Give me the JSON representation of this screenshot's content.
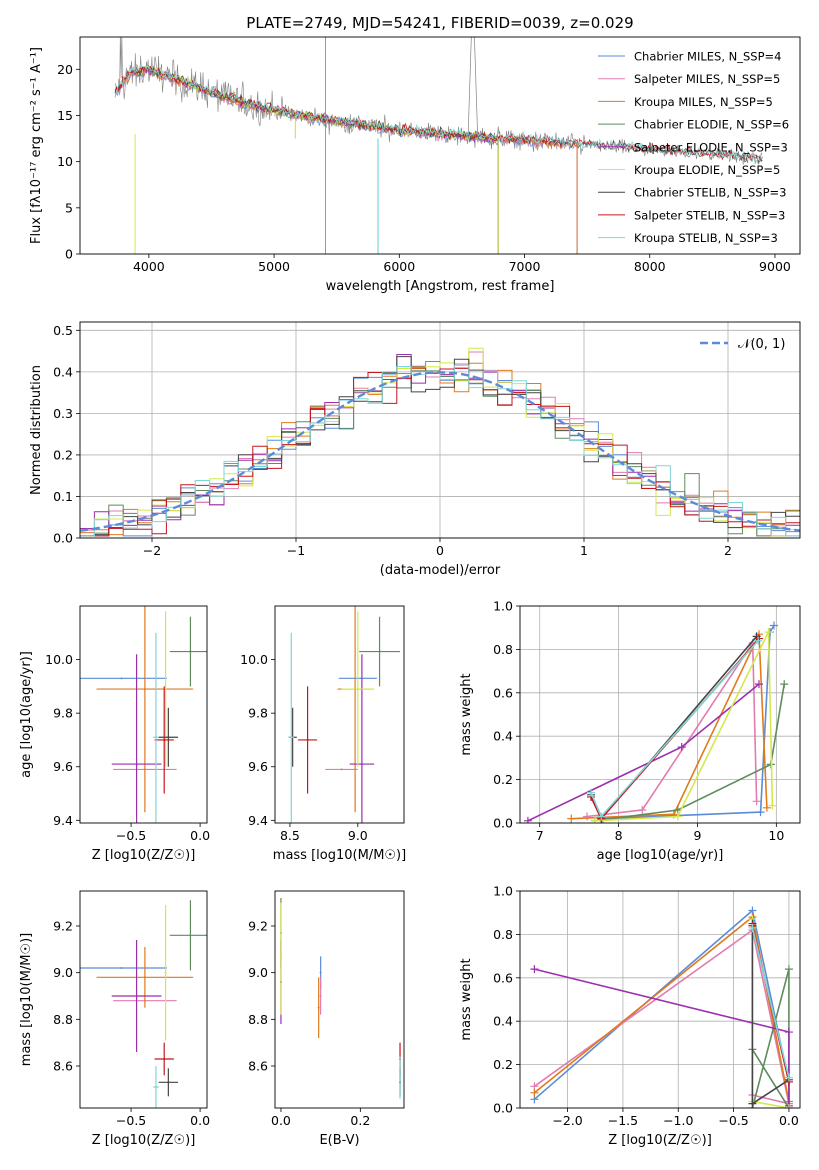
{
  "figure": {
    "title": "PLATE=2749, MJD=54241, FIBERID=0039, z=0.029"
  },
  "model_colors": {
    "Chabrier MILES": "#5b8bd9",
    "Salpeter MILES": "#e27bb0",
    "Kroupa MILES": "#e07a1f",
    "Chabrier ELODIE": "#5e8c5c",
    "Salpeter ELODIE": "#9b2fae",
    "Kroupa ELODIE": "#d4e84a",
    "Chabrier STELIB": "#444444",
    "Salpeter STELIB": "#c4161c",
    "Kroupa STELIB": "#7fd6d6",
    "data": "#808080"
  },
  "chart_data": [
    {
      "id": "spectrum",
      "type": "line",
      "title": "PLATE=2749, MJD=54241, FIBERID=0039, z=0.029",
      "xlabel": "wavelength [Angstrom, rest frame]",
      "ylabel": "Flux [fλ10⁻¹⁷ erg cm⁻² s⁻¹ A⁻¹]",
      "xlim": [
        3450,
        9200
      ],
      "ylim": [
        0,
        23.5
      ],
      "xticks": [
        4000,
        5000,
        6000,
        7000,
        8000,
        9000
      ],
      "yticks": [
        0,
        5,
        10,
        15,
        20
      ],
      "grid": false,
      "legend_position": "top-right",
      "legend": [
        "Chabrier MILES, N_SSP=4",
        "Salpeter MILES, N_SSP=5",
        "Kroupa MILES, N_SSP=5",
        "Chabrier ELODIE, N_SSP=6",
        "Salpeter ELODIE, N_SSP=3",
        "Kroupa ELODIE, N_SSP=5",
        "Chabrier STELIB, N_SSP=3",
        "Salpeter STELIB, N_SSP=3",
        "Kroupa STELIB, N_SSP=3"
      ],
      "continuum": {
        "x": [
          3730,
          3850,
          4000,
          4200,
          4500,
          4800,
          5000,
          5300,
          5600,
          6000,
          6500,
          7000,
          7500,
          8000,
          8500,
          8900
        ],
        "y": [
          17.5,
          19.5,
          20.0,
          19.0,
          17.5,
          16.2,
          15.6,
          14.8,
          14.2,
          13.4,
          12.8,
          12.3,
          11.8,
          11.3,
          10.8,
          10.2
        ]
      },
      "model_coverage": {
        "Chabrier MILES": [
          3730,
          7420
        ],
        "Salpeter MILES": [
          3730,
          7420
        ],
        "Kroupa MILES": [
          3730,
          7420
        ],
        "Chabrier ELODIE": [
          3900,
          6790
        ],
        "Salpeter ELODIE": [
          3900,
          6790
        ],
        "Kroupa ELODIE": [
          3900,
          6790
        ],
        "Chabrier STELIB": [
          3730,
          8900
        ],
        "Salpeter STELIB": [
          3730,
          8900
        ],
        "Kroupa STELIB": [
          3730,
          8900
        ]
      }
    },
    {
      "id": "residuals",
      "type": "line",
      "xlabel": "(data-model)/error",
      "ylabel": "Normed distribution",
      "xlim": [
        -2.5,
        2.5
      ],
      "ylim": [
        0,
        0.52
      ],
      "xticks": [
        -2,
        -1,
        0,
        1,
        2
      ],
      "yticks": [
        0.0,
        0.1,
        0.2,
        0.3,
        0.4,
        0.5
      ],
      "grid": true,
      "legend_position": "top-right",
      "legend": [
        "𝒩(0, 1)"
      ],
      "histogram_bins": {
        "start": -2.5,
        "width": 0.1,
        "count": 50
      },
      "reference_color": "#5b8bd9"
    },
    {
      "id": "age_vs_Z",
      "type": "scatter",
      "xlabel": "Z [log10(Z/Z☉)]",
      "ylabel": "age  [log10(age/yr)]",
      "xlim": [
        -0.87,
        0.05
      ],
      "ylim": [
        9.39,
        10.2
      ],
      "xticks": [
        -0.5,
        0.0
      ],
      "yticks": [
        9.4,
        9.6,
        9.8,
        10.0
      ],
      "grid": false,
      "series": [
        {
          "model": "Chabrier MILES",
          "x": -0.57,
          "xerr": 0.33,
          "y": 9.93,
          "yerr": 0.0
        },
        {
          "model": "Salpeter MILES",
          "x": -0.4,
          "xerr": 0.23,
          "y": 9.59,
          "yerr": 0.0
        },
        {
          "model": "Kroupa MILES",
          "x": -0.4,
          "xerr": 0.35,
          "y": 9.89,
          "yerr": 0.46
        },
        {
          "model": "Chabrier ELODIE",
          "x": -0.07,
          "xerr": 0.15,
          "y": 10.03,
          "yerr": 0.13
        },
        {
          "model": "Salpeter ELODIE",
          "x": -0.46,
          "xerr": 0.18,
          "y": 9.61,
          "yerr": 0.41
        },
        {
          "model": "Kroupa ELODIE",
          "x": -0.25,
          "xerr": 0.0,
          "y": 9.89,
          "yerr": 0.29
        },
        {
          "model": "Chabrier STELIB",
          "x": -0.23,
          "xerr": 0.07,
          "y": 9.71,
          "yerr": 0.11
        },
        {
          "model": "Salpeter STELIB",
          "x": -0.26,
          "xerr": 0.07,
          "y": 9.7,
          "yerr": 0.2
        },
        {
          "model": "Kroupa STELIB",
          "x": -0.32,
          "xerr": 0.02,
          "y": 9.71,
          "yerr": 0.39
        }
      ]
    },
    {
      "id": "age_vs_mass",
      "type": "scatter",
      "xlabel": "mass [log10(M/M☉)]",
      "ylabel": "",
      "xlim": [
        8.39,
        9.34
      ],
      "ylim": [
        9.39,
        10.2
      ],
      "xticks": [
        8.5,
        9.0
      ],
      "yticks": [
        9.4,
        9.6,
        9.8,
        10.0
      ],
      "grid": false,
      "series": [
        {
          "model": "Chabrier MILES",
          "x": 9.0,
          "xerr": 0.14,
          "y": 9.93,
          "yerr": 0.0
        },
        {
          "model": "Salpeter MILES",
          "x": 8.88,
          "xerr": 0.12,
          "y": 9.59,
          "yerr": 0.0
        },
        {
          "model": "Kroupa MILES",
          "x": 8.98,
          "xerr": 0.13,
          "y": 9.89,
          "yerr": 0.46
        },
        {
          "model": "Chabrier ELODIE",
          "x": 9.16,
          "xerr": 0.15,
          "y": 10.03,
          "yerr": 0.13
        },
        {
          "model": "Salpeter ELODIE",
          "x": 9.03,
          "xerr": 0.09,
          "y": 9.61,
          "yerr": 0.41
        },
        {
          "model": "Kroupa ELODIE",
          "x": 9.0,
          "xerr": 0.12,
          "y": 9.89,
          "yerr": 0.29
        },
        {
          "model": "Chabrier STELIB",
          "x": 8.52,
          "xerr": 0.03,
          "y": 9.71,
          "yerr": 0.11
        },
        {
          "model": "Salpeter STELIB",
          "x": 8.63,
          "xerr": 0.07,
          "y": 9.7,
          "yerr": 0.2
        },
        {
          "model": "Kroupa STELIB",
          "x": 8.51,
          "xerr": 0.02,
          "y": 9.71,
          "yerr": 0.39
        }
      ]
    },
    {
      "id": "mass_weight_vs_age",
      "type": "line",
      "xlabel": "age  [log10(age/yr)]",
      "ylabel": "mass weight",
      "xlim": [
        6.75,
        10.3
      ],
      "ylim": [
        0.0,
        1.0
      ],
      "xticks": [
        7,
        8,
        9,
        10
      ],
      "yticks": [
        0.0,
        0.2,
        0.4,
        0.6,
        0.8,
        1.0
      ],
      "grid": true,
      "series": [
        {
          "model": "Chabrier MILES",
          "x": [
            7.8,
            9.8,
            9.92,
            9.97
          ],
          "y": [
            0.02,
            0.05,
            0.88,
            0.91
          ]
        },
        {
          "model": "Salpeter MILES",
          "x": [
            7.6,
            8.3,
            9.7,
            9.75
          ],
          "y": [
            0.03,
            0.06,
            0.83,
            0.1
          ]
        },
        {
          "model": "Kroupa MILES",
          "x": [
            7.4,
            8.7,
            9.78,
            9.88
          ],
          "y": [
            0.02,
            0.04,
            0.87,
            0.07
          ]
        },
        {
          "model": "Chabrier ELODIE",
          "x": [
            7.7,
            8.75,
            9.93,
            10.1
          ],
          "y": [
            0.01,
            0.06,
            0.27,
            0.64
          ]
        },
        {
          "model": "Salpeter ELODIE",
          "x": [
            6.85,
            8.8,
            9.78
          ],
          "y": [
            0.01,
            0.35,
            0.64
          ]
        },
        {
          "model": "Kroupa ELODIE",
          "x": [
            7.7,
            8.75,
            9.9,
            9.95
          ],
          "y": [
            0.01,
            0.03,
            0.88,
            0.08
          ]
        },
        {
          "model": "Chabrier STELIB",
          "x": [
            7.65,
            7.78,
            9.75
          ],
          "y": [
            0.13,
            0.02,
            0.86
          ]
        },
        {
          "model": "Salpeter STELIB",
          "x": [
            7.65,
            7.78,
            9.78
          ],
          "y": [
            0.12,
            0.02,
            0.85
          ]
        },
        {
          "model": "Kroupa STELIB",
          "x": [
            7.65,
            7.78,
            9.77
          ],
          "y": [
            0.14,
            0.03,
            0.84
          ]
        }
      ]
    },
    {
      "id": "mass_vs_Z",
      "type": "scatter",
      "xlabel": "Z [log10(Z/Z☉)]",
      "ylabel": "mass [log10(M/M☉)]",
      "xlim": [
        -0.87,
        0.05
      ],
      "ylim": [
        8.42,
        9.35
      ],
      "xticks": [
        -0.5,
        0.0
      ],
      "yticks": [
        8.6,
        8.8,
        9.0,
        9.2
      ],
      "grid": false,
      "series": [
        {
          "model": "Chabrier MILES",
          "x": -0.57,
          "xerr": 0.33,
          "y": 9.02,
          "yerr": 0.0
        },
        {
          "model": "Salpeter MILES",
          "x": -0.4,
          "xerr": 0.23,
          "y": 8.88,
          "yerr": 0.0
        },
        {
          "model": "Kroupa MILES",
          "x": -0.4,
          "xerr": 0.35,
          "y": 8.98,
          "yerr": 0.13
        },
        {
          "model": "Chabrier ELODIE",
          "x": -0.07,
          "xerr": 0.15,
          "y": 9.16,
          "yerr": 0.15
        },
        {
          "model": "Salpeter ELODIE",
          "x": -0.46,
          "xerr": 0.18,
          "y": 8.9,
          "yerr": 0.24
        },
        {
          "model": "Kroupa ELODIE",
          "x": -0.25,
          "xerr": 0.0,
          "y": 9.0,
          "yerr": 0.29
        },
        {
          "model": "Chabrier STELIB",
          "x": -0.23,
          "xerr": 0.07,
          "y": 8.53,
          "yerr": 0.06
        },
        {
          "model": "Salpeter STELIB",
          "x": -0.26,
          "xerr": 0.07,
          "y": 8.63,
          "yerr": 0.07
        },
        {
          "model": "Kroupa STELIB",
          "x": -0.32,
          "xerr": 0.02,
          "y": 8.51,
          "yerr": 0.09
        }
      ]
    },
    {
      "id": "mass_vs_EBV",
      "type": "scatter",
      "xlabel": "E(B-V)",
      "ylabel": "",
      "xlim": [
        -0.015,
        0.31
      ],
      "ylim": [
        8.42,
        9.35
      ],
      "xticks": [
        0.0,
        0.2
      ],
      "yticks": [
        8.6,
        8.8,
        9.0,
        9.2
      ],
      "grid": false,
      "series": [
        {
          "model": "Chabrier MILES",
          "x": 0.1,
          "y": 9.0,
          "yerr": 0.07
        },
        {
          "model": "Salpeter MILES",
          "x": 0.1,
          "y": 8.9,
          "yerr": 0.08
        },
        {
          "model": "Kroupa MILES",
          "x": 0.095,
          "y": 8.85,
          "yerr": 0.13
        },
        {
          "model": "Chabrier ELODIE",
          "x": 0.0,
          "y": 9.17,
          "yerr": 0.15
        },
        {
          "model": "Salpeter ELODIE",
          "x": 0.0,
          "y": 8.96,
          "yerr": 0.18
        },
        {
          "model": "Kroupa ELODIE",
          "x": 0.0,
          "y": 9.06,
          "yerr": 0.24
        },
        {
          "model": "Chabrier STELIB",
          "x": 0.3,
          "y": 8.53,
          "yerr": 0.06
        },
        {
          "model": "Salpeter STELIB",
          "x": 0.3,
          "y": 8.63,
          "yerr": 0.07
        },
        {
          "model": "Kroupa STELIB",
          "x": 0.3,
          "y": 8.55,
          "yerr": 0.09
        }
      ]
    },
    {
      "id": "mass_weight_vs_Z",
      "type": "line",
      "xlabel": "Z [log10(Z/Z☉)]",
      "ylabel": "mass weight",
      "xlim": [
        -2.43,
        0.1
      ],
      "ylim": [
        0.0,
        1.0
      ],
      "xticks": [
        -2.0,
        -1.5,
        -1.0,
        -0.5,
        0.0
      ],
      "yticks": [
        0.0,
        0.2,
        0.4,
        0.6,
        0.8,
        1.0
      ],
      "grid": true,
      "series": [
        {
          "model": "Chabrier MILES",
          "x": [
            -2.3,
            -0.33,
            0.0,
            0.0
          ],
          "y": [
            0.04,
            0.91,
            0.12,
            0.0
          ]
        },
        {
          "model": "Salpeter MILES",
          "x": [
            -2.3,
            -0.33,
            0.0,
            -0.33
          ],
          "y": [
            0.1,
            0.82,
            0.02,
            0.06
          ]
        },
        {
          "model": "Kroupa MILES",
          "x": [
            -2.3,
            -0.33,
            0.0
          ],
          "y": [
            0.07,
            0.88,
            0.03
          ]
        },
        {
          "model": "Chabrier ELODIE",
          "x": [
            -0.33,
            0.0,
            0.0,
            -0.33
          ],
          "y": [
            0.27,
            0.0,
            0.64,
            0.0
          ]
        },
        {
          "model": "Salpeter ELODIE",
          "x": [
            -2.3,
            0.0,
            0.0
          ],
          "y": [
            0.64,
            0.35,
            0.01
          ]
        },
        {
          "model": "Kroupa ELODIE",
          "x": [
            -0.33,
            -0.33,
            0.0
          ],
          "y": [
            0.87,
            0.03,
            0.0
          ]
        },
        {
          "model": "Chabrier STELIB",
          "x": [
            -0.33,
            -0.33,
            0.0
          ],
          "y": [
            0.85,
            0.02,
            0.13
          ]
        },
        {
          "model": "Salpeter STELIB",
          "x": [
            -0.33,
            0.0
          ],
          "y": [
            0.84,
            0.12
          ]
        },
        {
          "model": "Kroupa STELIB",
          "x": [
            -0.33,
            0.0
          ],
          "y": [
            0.83,
            0.14
          ]
        }
      ]
    }
  ]
}
